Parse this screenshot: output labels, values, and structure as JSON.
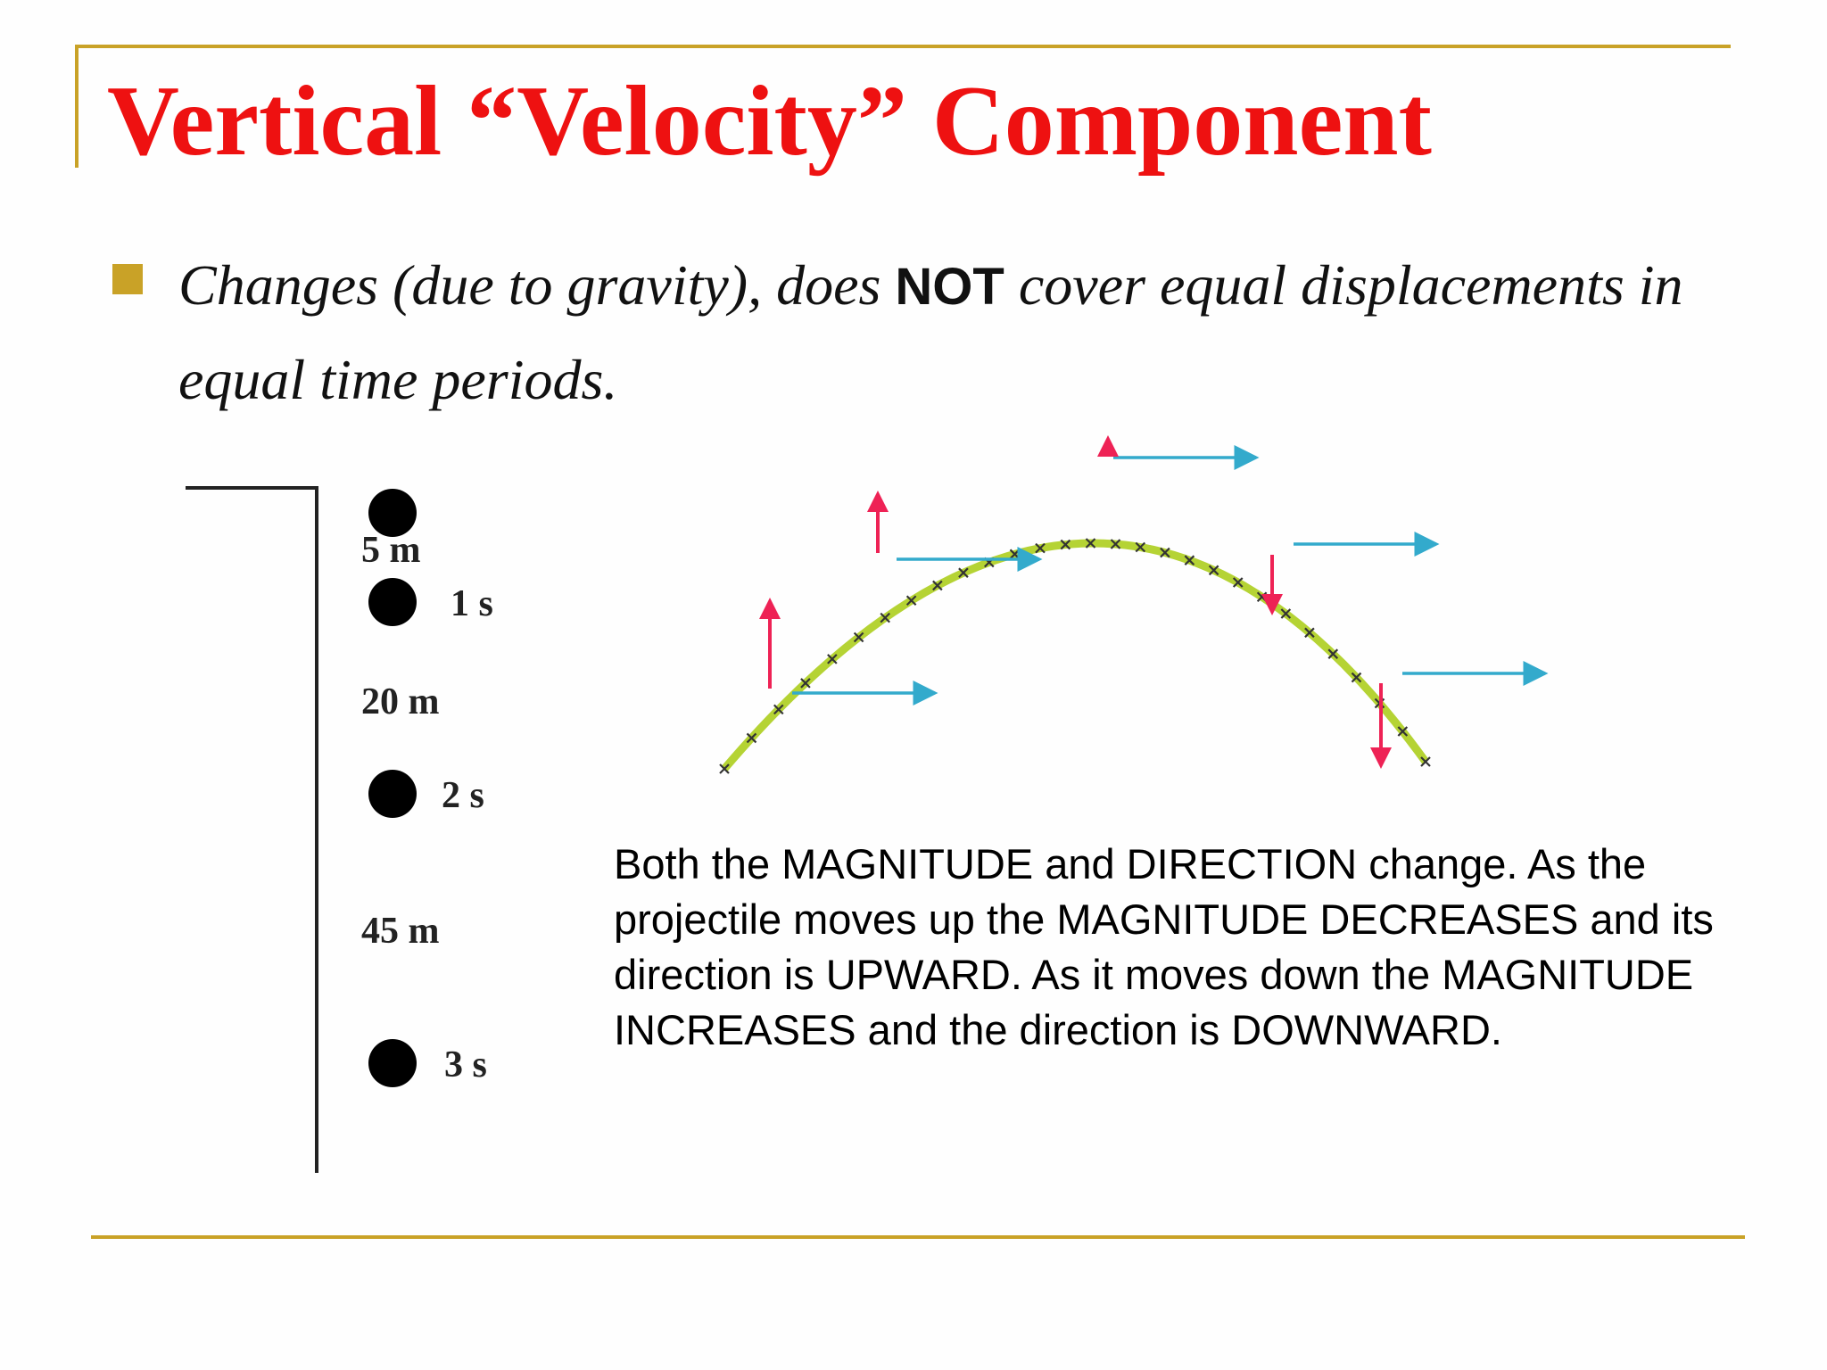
{
  "title": "Vertical “Velocity” Component",
  "bullet": {
    "before": "Changes (due to gravity), does ",
    "emphasis": "NOT",
    "after": " cover equal displacements in equal time periods."
  },
  "drop_figure": {
    "labels": {
      "d1": "5 m",
      "t1": "1 s",
      "d2": "20 m",
      "t2": "2 s",
      "d3": "45 m",
      "t3": "3 s"
    }
  },
  "caption": "Both the MAGNITUDE and DIRECTION change. As the projectile moves up the MAGNITUDE DECREASES and its direction is UPWARD. As it moves down the MAGNITUDE INCREASES and the direction is DOWNWARD.",
  "colors": {
    "title": "#ee1111",
    "accent_rule": "#c9a227",
    "path": "#b5d334",
    "horizontal_arrow": "#33aacc",
    "vertical_arrow": "#ee2255"
  }
}
